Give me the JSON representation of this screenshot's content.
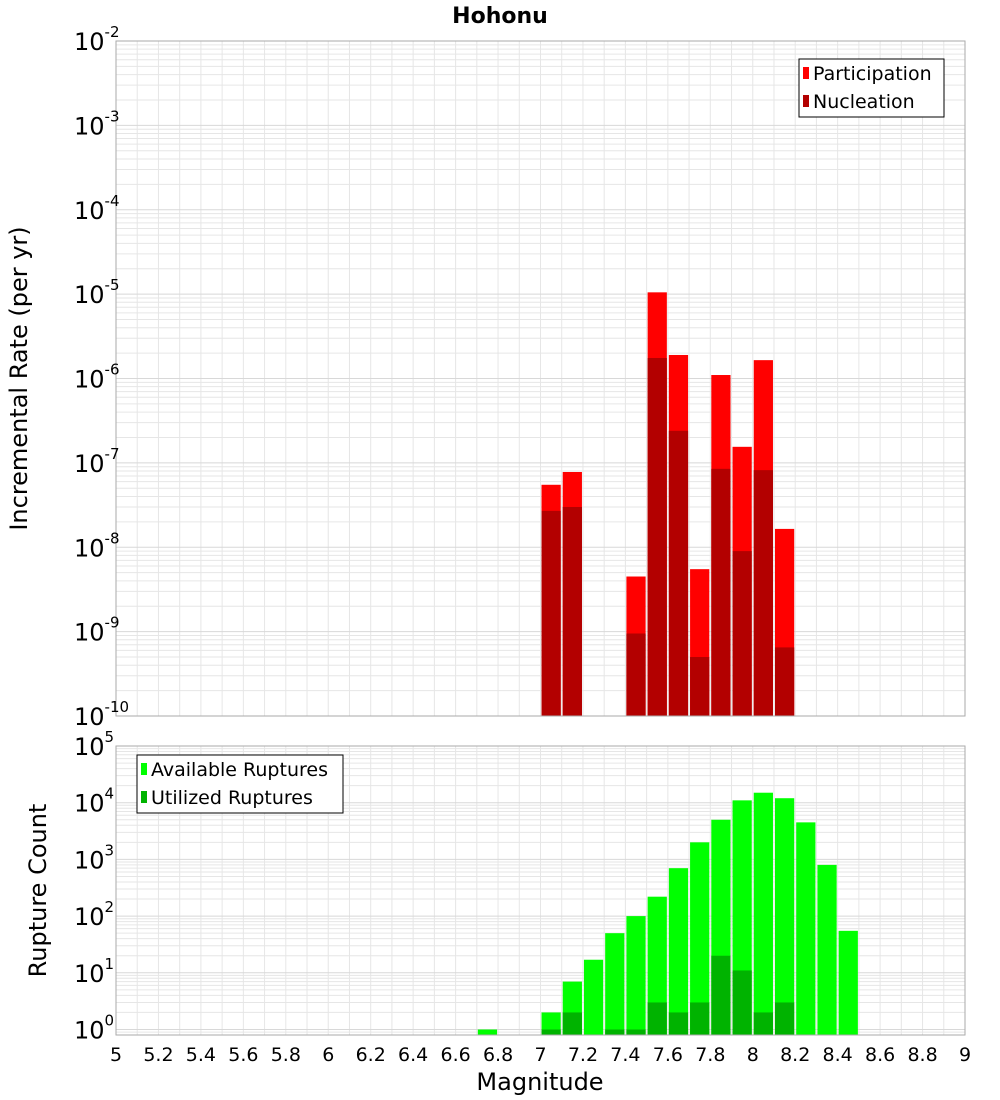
{
  "title": "Hohonu",
  "colors": {
    "participation": "#ff0000",
    "nucleation": "#b30000",
    "available": "#00ff00",
    "utilized": "#00b300",
    "grid": "#e6e6e6",
    "frame": "#aaaaaa"
  },
  "chart_data": [
    {
      "type": "bar",
      "ylabel": "Incremental Rate (per yr)",
      "yscale": "log",
      "ylim": [
        1e-10,
        0.01
      ],
      "yticks": [
        {
          "base": "10",
          "exp": "-10"
        },
        {
          "base": "10",
          "exp": "-9"
        },
        {
          "base": "10",
          "exp": "-8"
        },
        {
          "base": "10",
          "exp": "-7"
        },
        {
          "base": "10",
          "exp": "-6"
        },
        {
          "base": "10",
          "exp": "-5"
        },
        {
          "base": "10",
          "exp": "-4"
        },
        {
          "base": "10",
          "exp": "-3"
        },
        {
          "base": "10",
          "exp": "-2"
        }
      ],
      "legend_position": "top-right",
      "bin_width": 0.1,
      "x": [
        7.05,
        7.15,
        7.45,
        7.55,
        7.65,
        7.75,
        7.85,
        7.95,
        8.05,
        8.15
      ],
      "series": [
        {
          "name": "Participation",
          "values": [
            5.5e-08,
            7.8e-08,
            4.5e-09,
            1.05e-05,
            1.9e-06,
            5.5e-09,
            1.1e-06,
            1.55e-07,
            1.65e-06,
            1.65e-08
          ]
        },
        {
          "name": "Nucleation",
          "values": [
            2.7e-08,
            3e-08,
            9.5e-10,
            1.75e-06,
            2.4e-07,
            5e-10,
            8.5e-08,
            9e-09,
            8.2e-08,
            6.5e-10
          ]
        }
      ]
    },
    {
      "type": "bar",
      "xlabel": "Magnitude",
      "ylabel": "Rupture Count",
      "yscale": "log",
      "ylim": [
        0.8,
        100000.0
      ],
      "xlim": [
        5,
        9
      ],
      "yticks": [
        {
          "base": "10",
          "exp": "0"
        },
        {
          "base": "10",
          "exp": "1"
        },
        {
          "base": "10",
          "exp": "2"
        },
        {
          "base": "10",
          "exp": "3"
        },
        {
          "base": "10",
          "exp": "4"
        },
        {
          "base": "10",
          "exp": "5"
        }
      ],
      "xticks": [
        "5",
        "5.2",
        "5.4",
        "5.6",
        "5.8",
        "6",
        "6.2",
        "6.4",
        "6.6",
        "6.8",
        "7",
        "7.2",
        "7.4",
        "7.6",
        "7.8",
        "8",
        "8.2",
        "8.4",
        "8.6",
        "8.8",
        "9"
      ],
      "legend_position": "top-left",
      "bin_width": 0.1,
      "x": [
        6.75,
        7.05,
        7.15,
        7.25,
        7.35,
        7.45,
        7.55,
        7.65,
        7.75,
        7.85,
        7.95,
        8.05,
        8.15,
        8.25,
        8.35,
        8.45
      ],
      "series": [
        {
          "name": "Available Ruptures",
          "values": [
            1,
            2,
            7,
            17,
            50,
            100,
            220,
            700,
            2000,
            5000,
            11000,
            15000,
            12000,
            4500,
            800,
            55
          ]
        },
        {
          "name": "Utilized Ruptures",
          "values": [
            0,
            1,
            2,
            0,
            1,
            1,
            3,
            2,
            3,
            20,
            11,
            2,
            3,
            0,
            0,
            0
          ]
        }
      ]
    }
  ]
}
